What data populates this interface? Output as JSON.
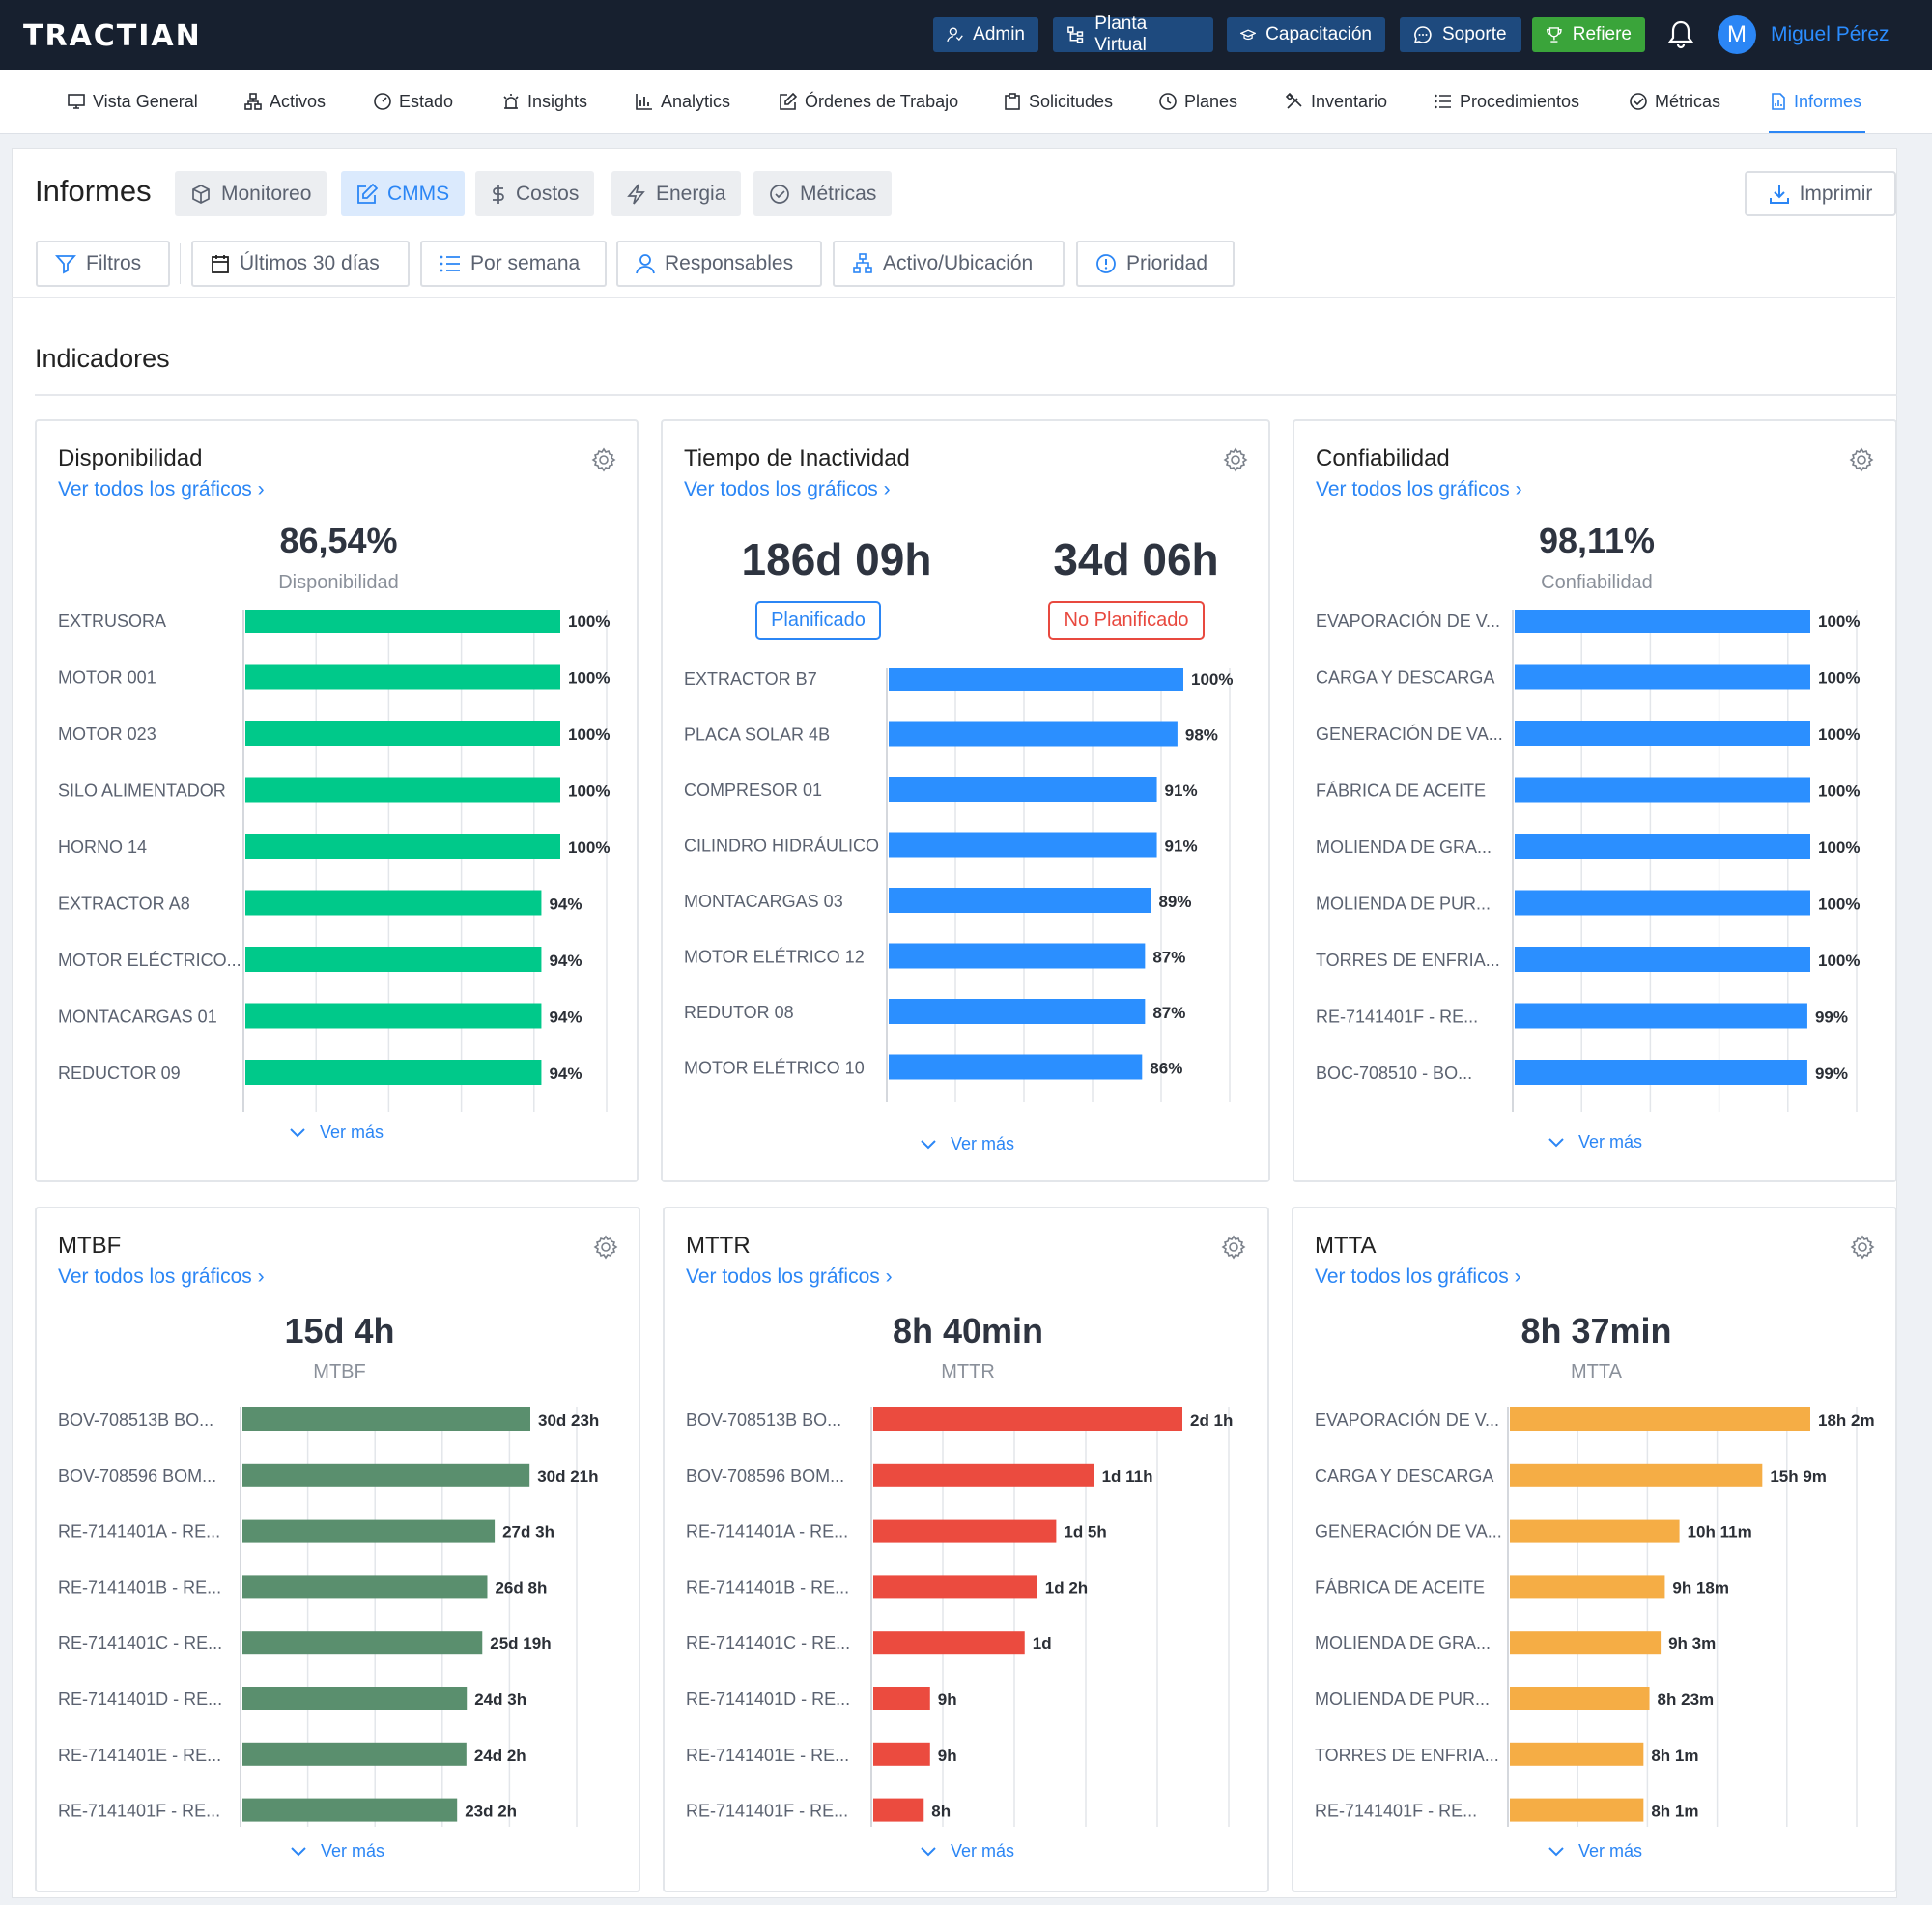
{
  "topbar": {
    "logo": "TRACTIAN",
    "buttons": [
      {
        "label": "Admin",
        "icon": "user-gear-icon"
      },
      {
        "label": "Planta Virtual",
        "icon": "hierarchy-icon"
      },
      {
        "label": "Capacitación",
        "icon": "graduation-cap-icon"
      },
      {
        "label": "Soporte",
        "icon": "chat-bubble-icon"
      },
      {
        "label": "Refiere",
        "icon": "trophy-icon"
      }
    ],
    "avatar_initial": "M",
    "user_name": "Miguel Pérez"
  },
  "nav": {
    "items": [
      {
        "label": "Vista General",
        "icon": "monitor-icon"
      },
      {
        "label": "Activos",
        "icon": "assets-icon"
      },
      {
        "label": "Estado",
        "icon": "gauge-icon"
      },
      {
        "label": "Insights",
        "icon": "alarm-icon"
      },
      {
        "label": "Analytics",
        "icon": "bar-chart-icon"
      },
      {
        "label": "Órdenes de Trabajo",
        "icon": "edit-icon"
      },
      {
        "label": "Solicitudes",
        "icon": "clipboard-icon"
      },
      {
        "label": "Planes",
        "icon": "clock-icon"
      },
      {
        "label": "Inventario",
        "icon": "tools-icon"
      },
      {
        "label": "Procedimientos",
        "icon": "list-icon"
      },
      {
        "label": "Métricas",
        "icon": "check-gauge-icon"
      },
      {
        "label": "Informes",
        "icon": "report-icon"
      }
    ],
    "active": "Informes"
  },
  "header": {
    "title": "Informes",
    "tabs": [
      {
        "label": "Monitoreo",
        "icon": "cube-icon"
      },
      {
        "label": "CMMS",
        "icon": "edit-icon"
      },
      {
        "label": "Costos",
        "icon": "dollar-icon"
      },
      {
        "label": "Energia",
        "icon": "lightning-icon"
      },
      {
        "label": "Métricas",
        "icon": "check-gauge-icon"
      }
    ],
    "active_tab": "CMMS",
    "print_label": "Imprimir"
  },
  "filters": [
    {
      "label": "Filtros",
      "icon": "filter-icon"
    },
    {
      "label": "Últimos 30 días",
      "icon": "calendar-icon"
    },
    {
      "label": "Por semana",
      "icon": "list-icon"
    },
    {
      "label": "Responsables",
      "icon": "person-icon"
    },
    {
      "label": "Activo/Ubicación",
      "icon": "assets-icon"
    },
    {
      "label": "Prioridad",
      "icon": "alert-circle-icon"
    }
  ],
  "section_title": "Indicadores",
  "link_label": "Ver todos los gráficos",
  "more_label": "Ver más",
  "colors": {
    "availability": "#00c98a",
    "downtime": "#2b8fff",
    "reliability": "#2b8fff",
    "mtbf": "#5a8f6e",
    "mttr": "#eb4b3f",
    "mtta": "#f5ad45",
    "accent": "#2b86f5"
  },
  "cards": [
    {
      "title": "Disponibilidad",
      "value": "86,54%",
      "value_label": "Disponibilidad",
      "chart_data": {
        "type": "bar",
        "categories": [
          "EXTRUSORA",
          "MOTOR 001",
          "MOTOR 023",
          "SILO ALIMENTADOR",
          "HORNO 14",
          "EXTRACTOR A8",
          "MOTOR ELÉCTRICO...",
          "MONTACARGAS 01",
          "REDUCTOR 09"
        ],
        "values": [
          100,
          100,
          100,
          100,
          100,
          94,
          94,
          94,
          94
        ],
        "labels": [
          "100%",
          "100%",
          "100%",
          "100%",
          "100%",
          "94%",
          "94%",
          "94%",
          "94%"
        ]
      }
    },
    {
      "title": "Tiempo de Inactividad",
      "planned_value": "186d 09h",
      "planned_label": "Planificado",
      "unplanned_value": "34d 06h",
      "unplanned_label": "No Planificado",
      "chart_data": {
        "type": "bar",
        "categories": [
          "EXTRACTOR B7",
          "PLACA SOLAR 4B",
          "COMPRESOR 01",
          "CILINDRO HIDRÁULICO",
          "MONTACARGAS 03",
          "MOTOR ELÉTRICO 12",
          "REDUTOR 08",
          "MOTOR ELÉTRICO 10"
        ],
        "values": [
          100,
          98,
          91,
          91,
          89,
          87,
          87,
          86
        ],
        "labels": [
          "100%",
          "98%",
          "91%",
          "91%",
          "89%",
          "87%",
          "87%",
          "86%"
        ]
      }
    },
    {
      "title": "Confiabilidad",
      "value": "98,11%",
      "value_label": "Confiabilidad",
      "chart_data": {
        "type": "bar",
        "categories": [
          "EVAPORACIÓN DE V...",
          "CARGA Y DESCARGA",
          "GENERACIÓN DE VA...",
          "FÁBRICA DE ACEITE",
          "MOLIENDA DE GRA...",
          "MOLIENDA DE PUR...",
          "TORRES DE ENFRIA...",
          "RE-7141401F - RE...",
          "BOC-708510 - BO..."
        ],
        "values": [
          100,
          100,
          100,
          100,
          100,
          100,
          100,
          99,
          99
        ],
        "labels": [
          "100%",
          "100%",
          "100%",
          "100%",
          "100%",
          "100%",
          "100%",
          "99%",
          "99%"
        ]
      }
    },
    {
      "title": "MTBF",
      "value": "15d 4h",
      "value_label": "MTBF",
      "chart_data": {
        "type": "bar",
        "categories": [
          "BOV-708513B BO...",
          "BOV-708596 BOM...",
          "RE-7141401A - RE...",
          "RE-7141401B - RE...",
          "RE-7141401C - RE...",
          "RE-7141401D - RE...",
          "RE-7141401E - RE...",
          "RE-7141401F - RE..."
        ],
        "values": [
          743,
          741,
          651,
          632,
          619,
          579,
          578,
          554
        ],
        "labels": [
          "30d 23h",
          "30d 21h",
          "27d 3h",
          "26d 8h",
          "25d 19h",
          "24d 3h",
          "24d 2h",
          "23d 2h"
        ]
      }
    },
    {
      "title": "MTTR",
      "value": "8h 40min",
      "value_label": "MTTR",
      "chart_data": {
        "type": "bar",
        "categories": [
          "BOV-708513B BO...",
          "BOV-708596 BOM...",
          "RE-7141401A - RE...",
          "RE-7141401B - RE...",
          "RE-7141401C - RE...",
          "RE-7141401D - RE...",
          "RE-7141401E - RE...",
          "RE-7141401F - RE..."
        ],
        "values": [
          49,
          35,
          29,
          26,
          24,
          9,
          9,
          8
        ],
        "labels": [
          "2d 1h",
          "1d 11h",
          "1d 5h",
          "1d 2h",
          "1d",
          "9h",
          "9h",
          "8h"
        ]
      }
    },
    {
      "title": "MTTA",
      "value": "8h 37min",
      "value_label": "MTTA",
      "chart_data": {
        "type": "bar",
        "categories": [
          "EVAPORACIÓN DE V...",
          "CARGA Y DESCARGA",
          "GENERACIÓN DE VA...",
          "FÁBRICA DE ACEITE",
          "MOLIENDA DE GRA...",
          "MOLIENDA DE PUR...",
          "TORRES DE ENFRIA...",
          "RE-7141401F - RE..."
        ],
        "values": [
          18.03,
          15.15,
          10.18,
          9.3,
          9.05,
          8.38,
          8.02,
          8.02
        ],
        "labels": [
          "18h 2m",
          "15h 9m",
          "10h 11m",
          "9h 18m",
          "9h 3m",
          "8h 23m",
          "8h 1m",
          "8h 1m"
        ]
      }
    }
  ]
}
